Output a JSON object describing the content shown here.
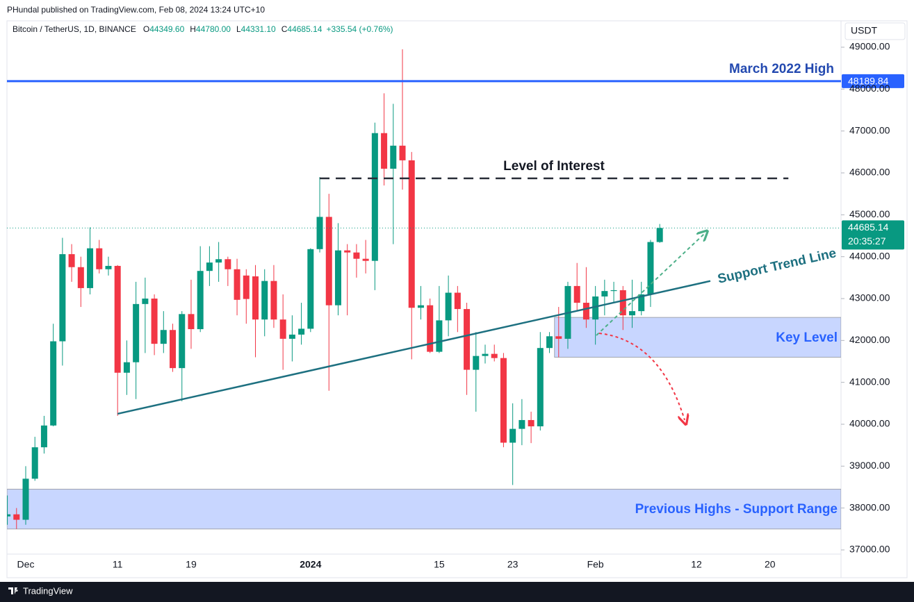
{
  "header": {
    "publisher": "PHundal published on TradingView.com, Feb 08, 2024 13:24 UTC+10",
    "symbol": "Bitcoin / TetherUS, 1D, BINANCE",
    "ohlc": [
      {
        "key": "O",
        "value": "44349.60"
      },
      {
        "key": "H",
        "value": "44780.00"
      },
      {
        "key": "L",
        "value": "44331.10"
      },
      {
        "key": "C",
        "value": "44685.14"
      }
    ],
    "change": "+335.54 (+0.76%)"
  },
  "footer": {
    "brand": "TradingView"
  },
  "chart_data": {
    "type": "candlestick",
    "currency": "USDT",
    "up_color": "#089981",
    "down_color": "#f23645",
    "categories": [
      null,
      null,
      "Dec",
      null,
      null,
      null,
      null,
      null,
      null,
      null,
      null,
      null,
      "11",
      null,
      null,
      null,
      null,
      null,
      null,
      null,
      "19",
      null,
      null,
      null,
      null,
      null,
      null,
      null,
      null,
      null,
      null,
      null,
      null,
      "2024",
      null,
      null,
      null,
      null,
      null,
      null,
      null,
      null,
      null,
      null,
      null,
      null,
      null,
      "15",
      null,
      null,
      null,
      null,
      null,
      null,
      null,
      "23",
      null,
      null,
      null,
      null,
      null,
      null,
      null,
      null,
      "Feb",
      null,
      null,
      null,
      null,
      null,
      null,
      null,
      null,
      null,
      null,
      "12",
      null,
      null,
      null,
      null,
      null,
      null,
      null,
      "20",
      null,
      null,
      null,
      null,
      null,
      null,
      null
    ],
    "open": [
      37800,
      37850,
      37720,
      38700,
      39450,
      39970,
      41980,
      44060,
      43750,
      43250,
      44200,
      43700,
      43780,
      41230,
      41480,
      42870,
      43000,
      41920,
      42250,
      41340,
      42630,
      42270,
      43660,
      43860,
      43940,
      43700,
      43550,
      43530,
      42500,
      43420,
      42500,
      42040,
      42140,
      42280,
      44180,
      44950,
      42840,
      44150,
      44100,
      43950,
      43900,
      46950,
      46100,
      46650,
      46300,
      42780,
      42840,
      41730,
      42480,
      43140,
      42750,
      41300,
      41630,
      41680,
      41580,
      39560,
      39890,
      40100,
      39950,
      41820,
      42100,
      42040,
      43300,
      42900,
      42500,
      43050,
      43180,
      43200,
      42600,
      42700,
      43100,
      44349.6,
      null,
      null,
      null,
      null,
      null,
      null,
      null,
      null,
      null,
      null,
      null,
      null,
      null,
      null,
      null,
      null,
      null,
      null,
      null
    ],
    "high": [
      38300,
      38000,
      39000,
      39700,
      40200,
      42400,
      44450,
      44300,
      44000,
      44700,
      44400,
      44000,
      43800,
      42000,
      43400,
      43500,
      43100,
      42700,
      42400,
      42700,
      43450,
      44250,
      44250,
      44350,
      44000,
      43950,
      43700,
      43800,
      43700,
      43800,
      43100,
      42600,
      42900,
      44200,
      45900,
      45500,
      44800,
      44300,
      44300,
      44400,
      47200,
      47900,
      47650,
      48950,
      46500,
      43300,
      43000,
      43300,
      43550,
      43300,
      42900,
      42200,
      41900,
      41900,
      41700,
      40500,
      40600,
      40300,
      42200,
      42200,
      42800,
      43400,
      43850,
      43750,
      43300,
      43450,
      43400,
      43300,
      43450,
      43400,
      44400,
      44780,
      null,
      null,
      null,
      null,
      null,
      null,
      null,
      null,
      null,
      null,
      null,
      null,
      null,
      null,
      null,
      null,
      null,
      null,
      null
    ],
    "low": [
      37600,
      37500,
      37600,
      38650,
      39300,
      39950,
      41400,
      43400,
      42800,
      43100,
      43600,
      43550,
      40200,
      40700,
      40600,
      41700,
      41650,
      41700,
      41250,
      40550,
      41800,
      42200,
      43300,
      43400,
      43300,
      42600,
      42400,
      41600,
      42100,
      42300,
      41300,
      41500,
      41900,
      42200,
      44100,
      40800,
      42600,
      42600,
      43500,
      43600,
      43200,
      45700,
      44300,
      45600,
      41550,
      42500,
      41700,
      41700,
      42100,
      42200,
      40700,
      40300,
      41450,
      41500,
      39450,
      38550,
      39500,
      39550,
      39850,
      41700,
      41600,
      41800,
      42700,
      42300,
      41900,
      42600,
      42900,
      42250,
      42300,
      42600,
      42800,
      44331.1,
      null,
      null,
      null,
      null,
      null,
      null,
      null,
      null,
      null,
      null,
      null,
      null,
      null,
      null,
      null,
      null,
      null,
      null,
      null
    ],
    "close": [
      37850,
      37720,
      38700,
      39450,
      39970,
      41980,
      44060,
      43750,
      43250,
      44200,
      43700,
      43780,
      41230,
      41480,
      42870,
      43000,
      41920,
      42250,
      41340,
      42630,
      42270,
      43660,
      43860,
      43940,
      43700,
      42970,
      42990,
      42500,
      43420,
      42500,
      42040,
      42140,
      42280,
      44180,
      44950,
      42840,
      44150,
      44100,
      43950,
      43900,
      46950,
      46100,
      46650,
      46300,
      42780,
      42840,
      41730,
      42480,
      43140,
      42750,
      41300,
      41630,
      41680,
      41580,
      39560,
      39890,
      40100,
      39950,
      41820,
      42100,
      42040,
      43300,
      42900,
      42500,
      43050,
      43180,
      43200,
      42600,
      42700,
      43100,
      44350,
      44685.14,
      null,
      null,
      null,
      null,
      null,
      null,
      null,
      null,
      null,
      null,
      null,
      null,
      null,
      null,
      null,
      null,
      null,
      null,
      null
    ],
    "ylim": [
      36370,
      49630
    ],
    "yticks": [
      {
        "value": 37000,
        "label": "37000.00"
      },
      {
        "value": 38000,
        "label": "38000.00"
      },
      {
        "value": 39000,
        "label": "39000.00"
      },
      {
        "value": 40000,
        "label": "40000.00"
      },
      {
        "value": 41000,
        "label": "41000.00"
      },
      {
        "value": 42000,
        "label": "42000.00"
      },
      {
        "value": 43000,
        "label": "43000.00"
      },
      {
        "value": 44000,
        "label": "44000.00"
      },
      {
        "value": 45000,
        "label": "45000.00"
      },
      {
        "value": 46000,
        "label": "46000.00"
      },
      {
        "value": 47000,
        "label": "47000.00"
      },
      {
        "value": 48000,
        "label": "48000.00"
      },
      {
        "value": 49000,
        "label": "49000.00"
      }
    ],
    "price_lines": [
      {
        "text": "March 2022 High",
        "value": 48189.84,
        "label": "48189.84",
        "color": "#2962ff"
      }
    ],
    "level_of_interest": {
      "text": "Level of Interest",
      "value": 45870
    },
    "trend_line": {
      "text": "Support Trend Line",
      "start": 40250,
      "end": 43420,
      "color": "#1d7080"
    },
    "zones": [
      {
        "text": "Key Level",
        "low": 41600,
        "high": 42550
      },
      {
        "text": "Previous Highs - Support Range",
        "low": 37500,
        "high": 38450
      }
    ],
    "last_price": {
      "value": 44685.14,
      "label": "44685.14",
      "countdown": "20:35:27"
    }
  }
}
